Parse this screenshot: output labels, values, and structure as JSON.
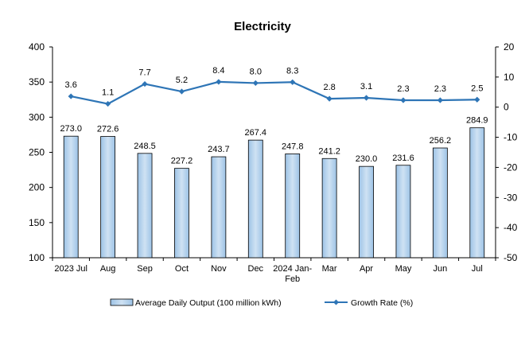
{
  "chart_data": {
    "type": "bar",
    "title": "Electricity",
    "categories": [
      "2023 Jul",
      "Aug",
      "Sep",
      "Oct",
      "Nov",
      "Dec",
      "2024 Jan-Feb",
      "Mar",
      "Apr",
      "May",
      "Jun",
      "Jul"
    ],
    "series": [
      {
        "name": "Average Daily Output (100 million kWh)",
        "type": "bar",
        "axis": "left",
        "values": [
          273.0,
          272.6,
          248.5,
          227.2,
          243.7,
          267.4,
          247.8,
          241.2,
          230.0,
          231.6,
          256.2,
          284.9
        ],
        "labels": [
          "273.0",
          "272.6",
          "248.5",
          "227.2",
          "243.7",
          "267.4",
          "247.8",
          "241.2",
          "230.0",
          "231.6",
          "256.2",
          "284.9"
        ]
      },
      {
        "name": "Growth Rate (%)",
        "type": "line",
        "axis": "right",
        "values": [
          3.6,
          1.1,
          7.7,
          5.2,
          8.4,
          8.0,
          8.3,
          2.8,
          3.1,
          2.3,
          2.3,
          2.5
        ],
        "labels": [
          "3.6",
          "1.1",
          "7.7",
          "5.2",
          "8.4",
          "8.0",
          "8.3",
          "2.8",
          "3.1",
          "2.3",
          "2.3",
          "2.5"
        ]
      }
    ],
    "y_left": {
      "min": 100,
      "max": 400,
      "step": 50,
      "ticks": [
        "400",
        "350",
        "300",
        "250",
        "200",
        "150",
        "100"
      ]
    },
    "y_right": {
      "min": -50,
      "max": 20,
      "step": 10,
      "ticks": [
        "20",
        "10",
        "0",
        "-10",
        "-20",
        "-30",
        "-40",
        "-50"
      ]
    },
    "legend_position": "bottom",
    "grid": false,
    "colors": {
      "bar_fill": "#9dc3e6",
      "bar_fill_light": "#cfe2f3",
      "bar_stroke": "#000000",
      "line": "#2e75b6",
      "axis": "#000000"
    }
  }
}
